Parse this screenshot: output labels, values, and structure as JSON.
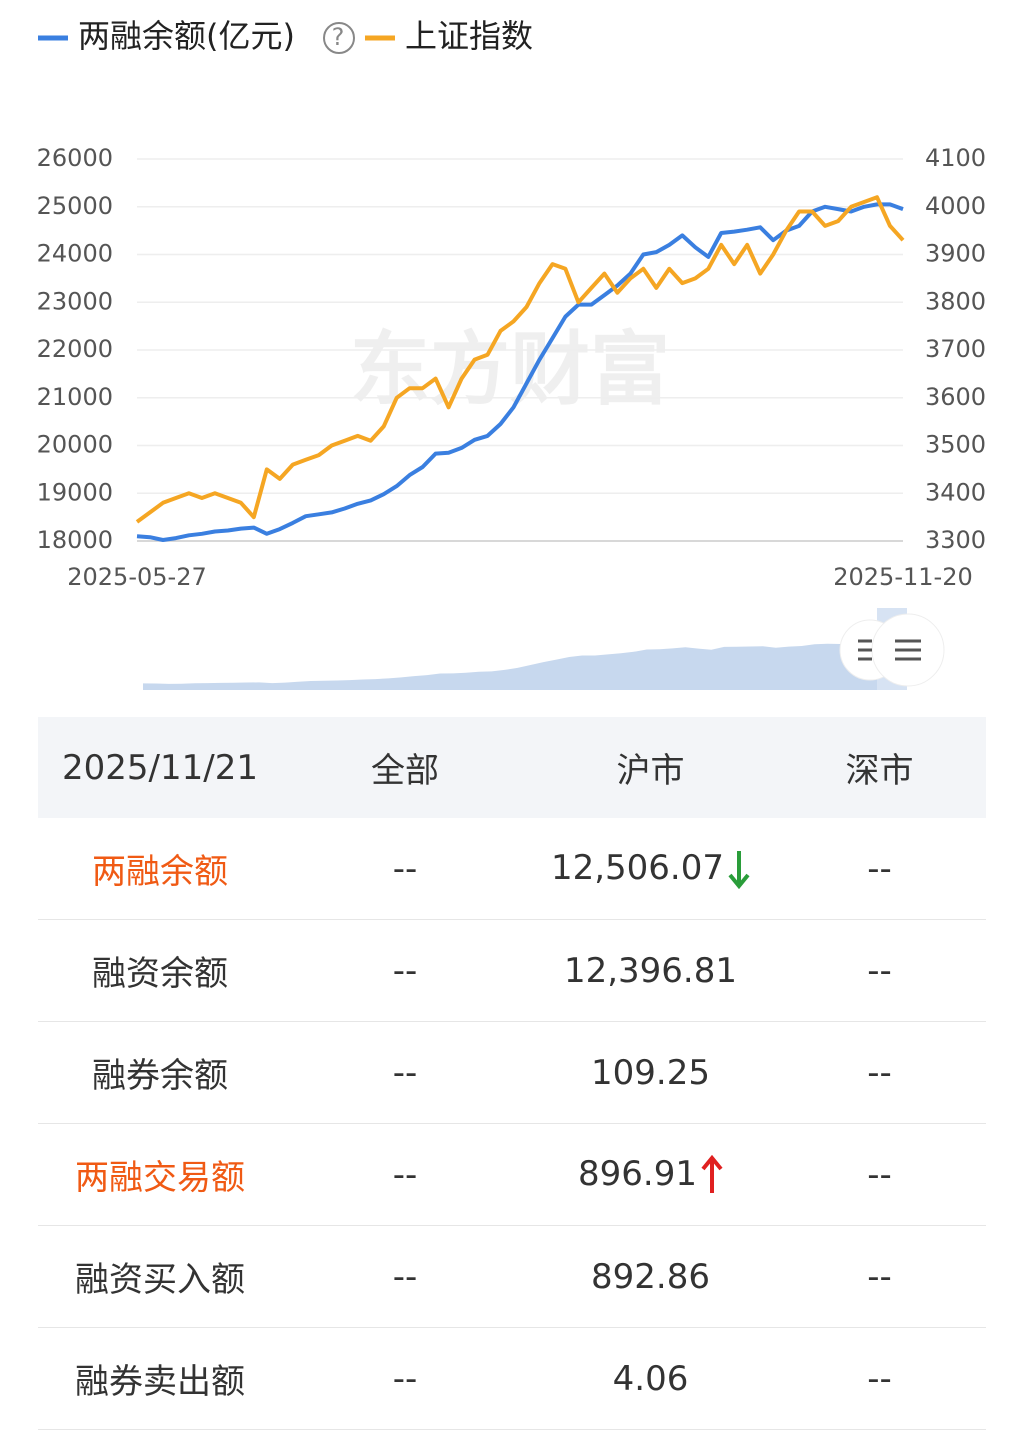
{
  "chart_data": {
    "type": "line",
    "watermark": "东方财富",
    "categories": [
      "2025-05-27",
      null,
      null,
      null,
      null,
      null,
      null,
      null,
      null,
      null,
      null,
      null,
      null,
      null,
      null,
      null,
      null,
      null,
      null,
      null,
      null,
      null,
      null,
      null,
      null,
      null,
      null,
      null,
      null,
      null,
      null,
      null,
      null,
      null,
      null,
      null,
      null,
      null,
      null,
      null,
      null,
      null,
      null,
      null,
      null,
      null,
      null,
      null,
      null,
      null,
      null,
      null,
      null,
      null,
      null,
      null,
      null,
      null,
      null,
      "2025-11-20"
    ],
    "series": [
      {
        "name": "两融余额(亿元)",
        "color": "#3a7fe0",
        "values": [
          18100,
          18080,
          18020,
          18060,
          18120,
          18150,
          18200,
          18220,
          18260,
          18280,
          18150,
          18250,
          18380,
          18520,
          18560,
          18600,
          18680,
          18780,
          18850,
          18980,
          19150,
          19380,
          19550,
          19830,
          19850,
          19950,
          20120,
          20200,
          20450,
          20800,
          21300,
          21800,
          22250,
          22700,
          22950,
          22950,
          23150,
          23350,
          23600,
          24000,
          24050,
          24200,
          24400,
          24150,
          23950,
          24450,
          24480,
          24520,
          24570,
          24300,
          24500,
          24600,
          24900,
          25000,
          24950,
          24900,
          25000,
          25050,
          25050,
          24950
        ]
      },
      {
        "name": "上证指数",
        "color": "#f5a623",
        "axis": "y2",
        "values": [
          3340,
          3360,
          3380,
          3390,
          3400,
          3390,
          3400,
          3390,
          3380,
          3350,
          3450,
          3430,
          3460,
          3470,
          3480,
          3500,
          3510,
          3520,
          3510,
          3540,
          3600,
          3620,
          3620,
          3640,
          3580,
          3640,
          3680,
          3690,
          3740,
          3760,
          3790,
          3840,
          3880,
          3870,
          3800,
          3830,
          3860,
          3820,
          3850,
          3870,
          3830,
          3870,
          3840,
          3850,
          3870,
          3920,
          3880,
          3920,
          3860,
          3900,
          3950,
          3990,
          3990,
          3960,
          3970,
          4000,
          4010,
          4020,
          3960,
          3930
        ]
      }
    ],
    "ylim": [
      18000,
      26000
    ],
    "yticks": [
      18000,
      19000,
      20000,
      21000,
      22000,
      23000,
      24000,
      25000,
      26000
    ],
    "y2lim": [
      3300,
      4100
    ],
    "y2ticks": [
      3300,
      3400,
      3500,
      3600,
      3700,
      3800,
      3900,
      4000,
      4100
    ],
    "grid": true
  },
  "table": {
    "header": [
      "2025/11/21",
      "全部",
      "沪市",
      "深市"
    ],
    "rows": [
      [
        "两融余额",
        "--",
        "12,506.07",
        "--"
      ],
      [
        "融资余额",
        "--",
        "12,396.81",
        "--"
      ],
      [
        "融券余额",
        "--",
        "109.25",
        "--"
      ],
      [
        "两融交易额",
        "--",
        "896.91",
        "--"
      ],
      [
        "融资买入额",
        "--",
        "892.86",
        "--"
      ],
      [
        "融券卖出额",
        "--",
        "4.06",
        "--"
      ]
    ]
  }
}
